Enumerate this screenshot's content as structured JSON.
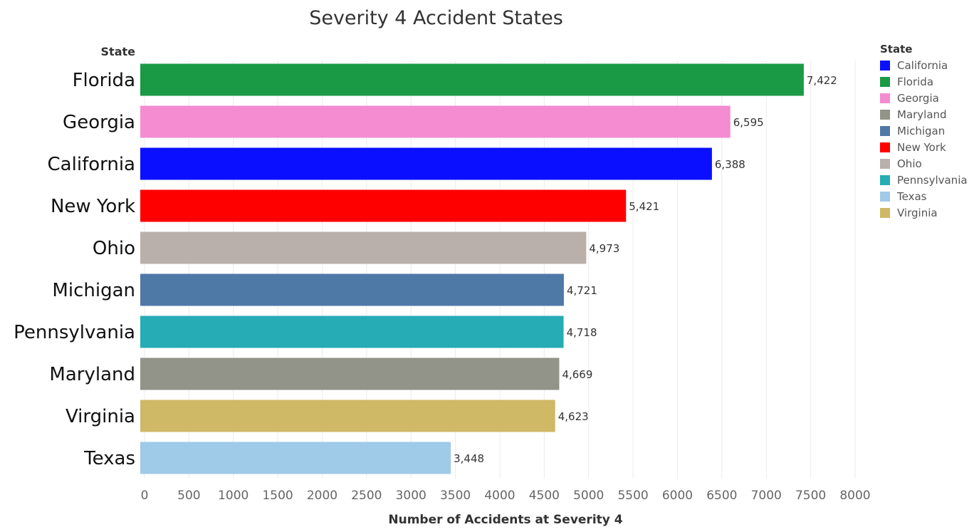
{
  "chart_data": {
    "type": "bar",
    "orientation": "horizontal",
    "title": "Severity 4 Accident States",
    "ylabel": "State",
    "xlabel": "Number of Accidents at Severity 4",
    "xlim": [
      0,
      8000
    ],
    "xticks": [
      0,
      500,
      1000,
      1500,
      2000,
      2500,
      3000,
      3500,
      4000,
      4500,
      5000,
      5500,
      6000,
      6500,
      7000,
      7500,
      8000
    ],
    "grid": true,
    "categories": [
      "Florida",
      "Georgia",
      "California",
      "New York",
      "Ohio",
      "Michigan",
      "Pennsylvania",
      "Maryland",
      "Virginia",
      "Texas"
    ],
    "values": [
      7422,
      6595,
      6388,
      5421,
      4973,
      4721,
      4718,
      4669,
      4623,
      3448
    ],
    "value_labels": [
      "7,422",
      "6,595",
      "6,388",
      "5,421",
      "4,973",
      "4,721",
      "4,718",
      "4,669",
      "4,623",
      "3,448"
    ],
    "bar_colors": [
      "#1a9a44",
      "#f58bd0",
      "#0a10ff",
      "#ff0000",
      "#bab0ab",
      "#4e79a7",
      "#26acb4",
      "#929489",
      "#cfb866",
      "#9fcae8"
    ],
    "legend": {
      "title": "State",
      "placement": "right",
      "items": [
        {
          "label": "California",
          "color": "#0a10ff"
        },
        {
          "label": "Florida",
          "color": "#1a9a44"
        },
        {
          "label": "Georgia",
          "color": "#f58bd0"
        },
        {
          "label": "Maryland",
          "color": "#929489"
        },
        {
          "label": "Michigan",
          "color": "#4e79a7"
        },
        {
          "label": "New York",
          "color": "#ff0000"
        },
        {
          "label": "Ohio",
          "color": "#bab0ab"
        },
        {
          "label": "Pennsylvania",
          "color": "#26acb4"
        },
        {
          "label": "Texas",
          "color": "#9fcae8"
        },
        {
          "label": "Virginia",
          "color": "#cfb866"
        }
      ]
    }
  }
}
